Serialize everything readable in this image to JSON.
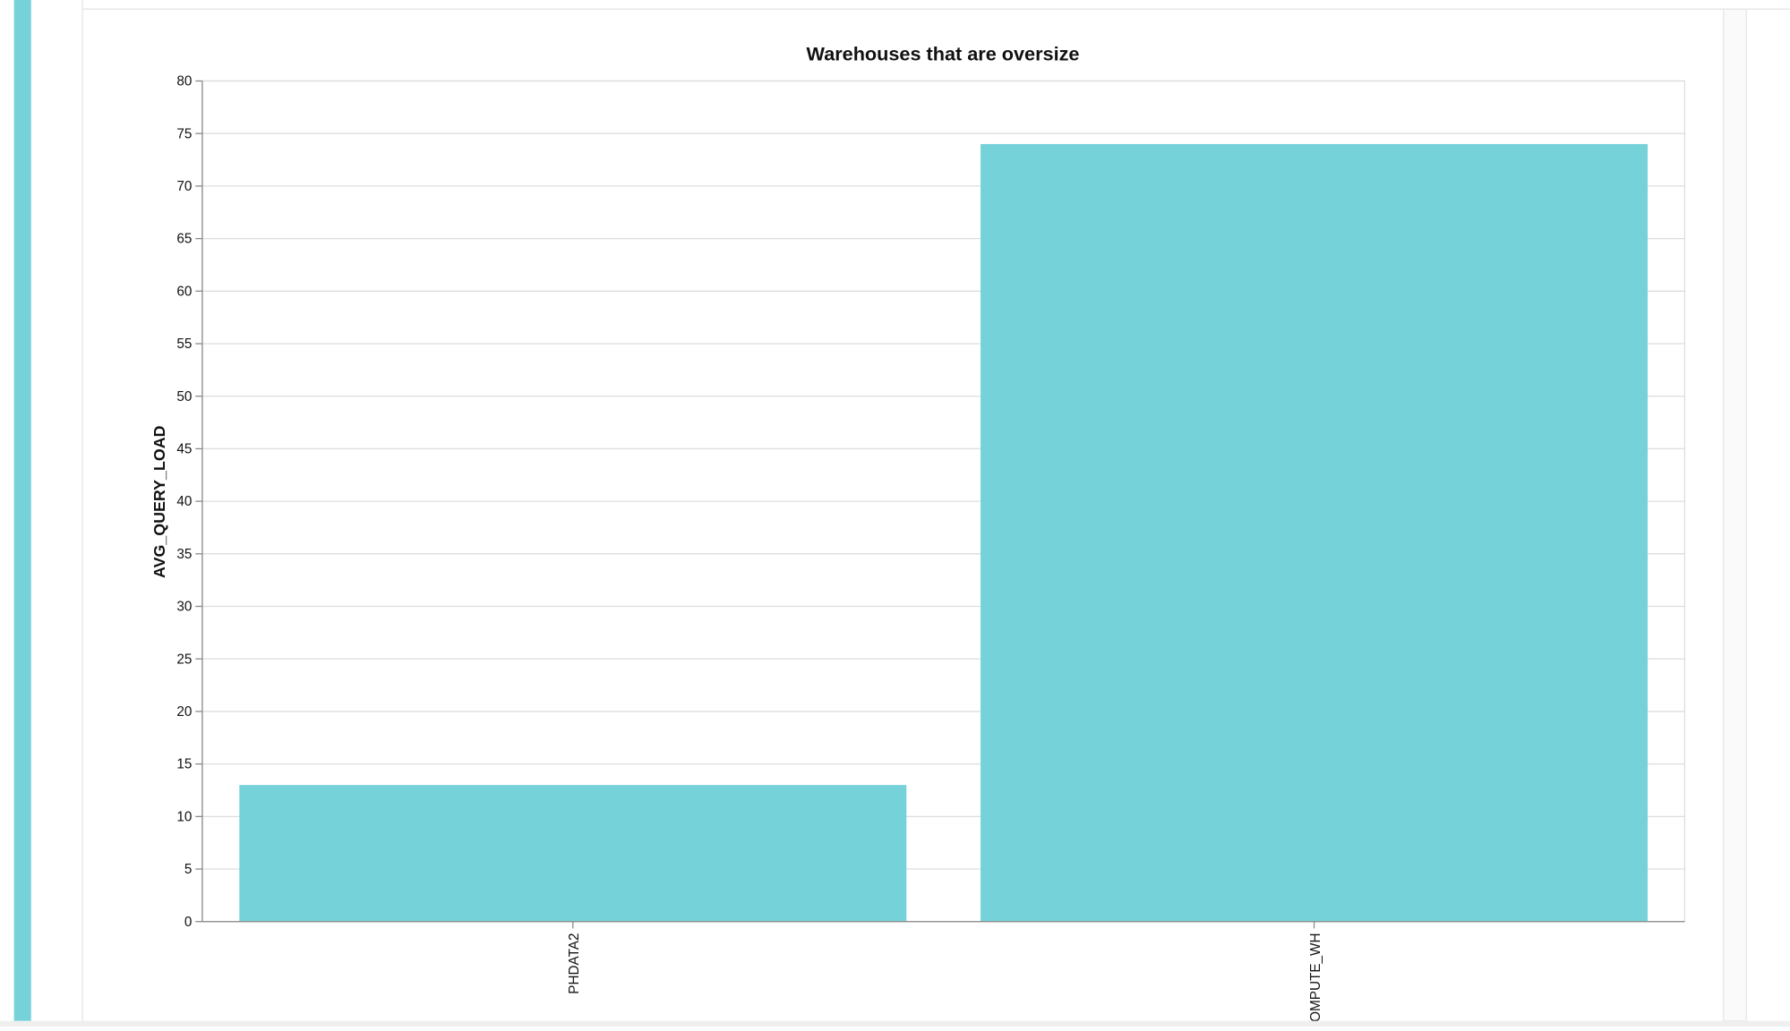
{
  "chart_data": {
    "type": "bar",
    "title": "Warehouses that are oversize",
    "y_label": "AVG_QUERY_LOAD",
    "categories": [
      "PHDATA2",
      "COMPUTE_WH"
    ],
    "values": [
      13,
      74
    ],
    "color": "#76d2d9",
    "ylim": [
      0,
      80
    ],
    "yticks": [
      0,
      5,
      10,
      15,
      20,
      25,
      30,
      35,
      40,
      45,
      50,
      55,
      60,
      65,
      70,
      75,
      80
    ],
    "grid": true
  }
}
